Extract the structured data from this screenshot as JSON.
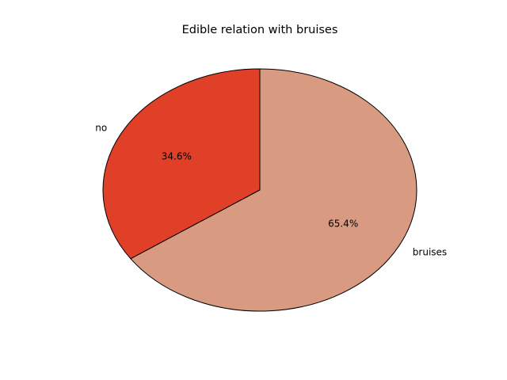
{
  "chart_data": {
    "type": "pie",
    "title": "Edible relation with bruises",
    "slices": [
      {
        "label": "no",
        "value": 34.6,
        "pct_label": "34.6%",
        "color": "#e03f28"
      },
      {
        "label": "bruises",
        "value": 65.4,
        "pct_label": "65.4%",
        "color": "#d89b82"
      }
    ],
    "start_angle_deg": 90,
    "direction": "counterclockwise",
    "edge_color": "#000000"
  }
}
